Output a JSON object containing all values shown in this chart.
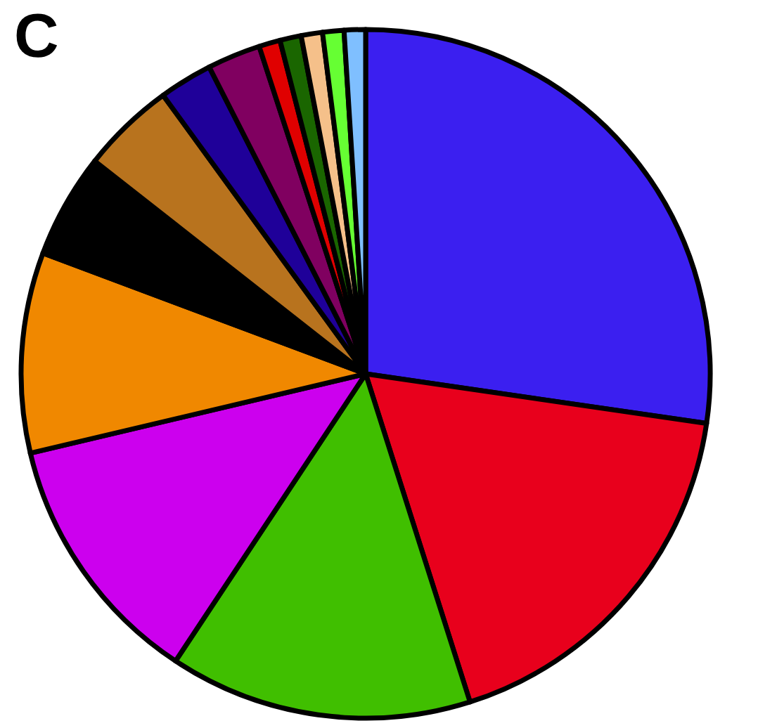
{
  "chart_data": {
    "type": "pie",
    "title": "C",
    "legend": false,
    "categories": [
      null,
      null,
      null,
      null,
      null,
      null,
      null,
      null,
      null,
      null,
      null,
      null,
      null,
      null
    ],
    "values": [
      27.3,
      17.8,
      14.2,
      12,
      9.4,
      4.9,
      4.4,
      2.5,
      2.5,
      1,
      1,
      1,
      1,
      1
    ],
    "colors": [
      "#3b1ff0",
      "#e8001c",
      "#40bf00",
      "#cc00ee",
      "#f08800",
      "#000000",
      "#b8731e",
      "#1f0099",
      "#800060",
      "#e00000",
      "#1a6600",
      "#f5c08a",
      "#66ff33",
      "#7fbfff"
    ]
  }
}
